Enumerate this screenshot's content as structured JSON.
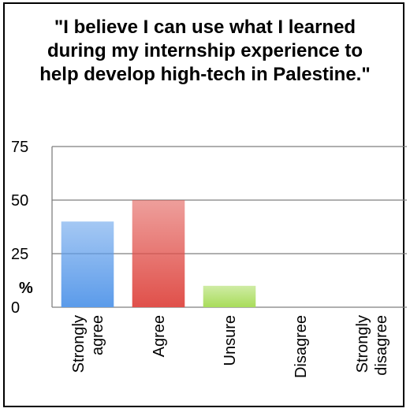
{
  "chart_data": {
    "type": "bar",
    "title": "\"I believe I can use what I learned during my internship experience to help develop high-tech in Palestine.\"",
    "xlabel": "",
    "ylabel": "%",
    "ylim": [
      0,
      75
    ],
    "yticks": [
      0,
      25,
      50,
      75
    ],
    "categories": [
      [
        "Strongly",
        "agree"
      ],
      [
        "Agree"
      ],
      [
        "Unsure"
      ],
      [
        "Disagree"
      ],
      [
        "Strongly",
        "disagree"
      ]
    ],
    "values": [
      40,
      50,
      10,
      0,
      0
    ],
    "colors": [
      "#5b9bea",
      "#e0504a",
      "#a8dc5a",
      "#999999",
      "#999999"
    ],
    "grid": true
  }
}
